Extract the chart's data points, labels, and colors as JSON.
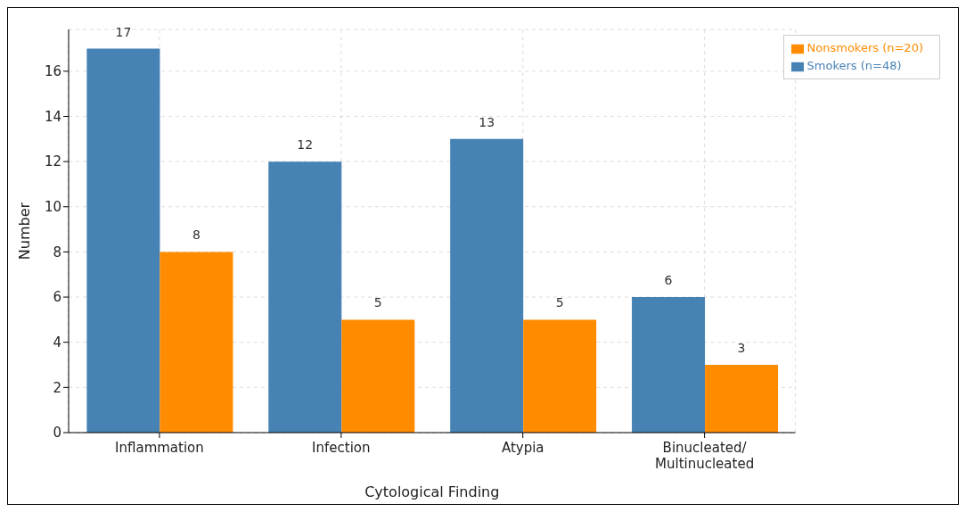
{
  "chart_data": {
    "type": "bar",
    "xlabel": "Cytological Finding",
    "ylabel": "Number",
    "categories": [
      "Inflammation",
      "Infection",
      "Atypia",
      "Binucleated/\nMultinucleated"
    ],
    "series": [
      {
        "name": "Smokers (n=48)",
        "color": "#4682b4",
        "values": [
          17,
          12,
          13,
          6
        ]
      },
      {
        "name": "Nonsmokers (n=20)",
        "color": "#ff8c00",
        "values": [
          8,
          5,
          5,
          3
        ]
      }
    ],
    "ylim": [
      0,
      17.85
    ],
    "yticks": [
      0,
      2,
      4,
      6,
      8,
      10,
      12,
      14,
      16
    ],
    "grid": true,
    "legend": "top right",
    "data_labels": true
  }
}
